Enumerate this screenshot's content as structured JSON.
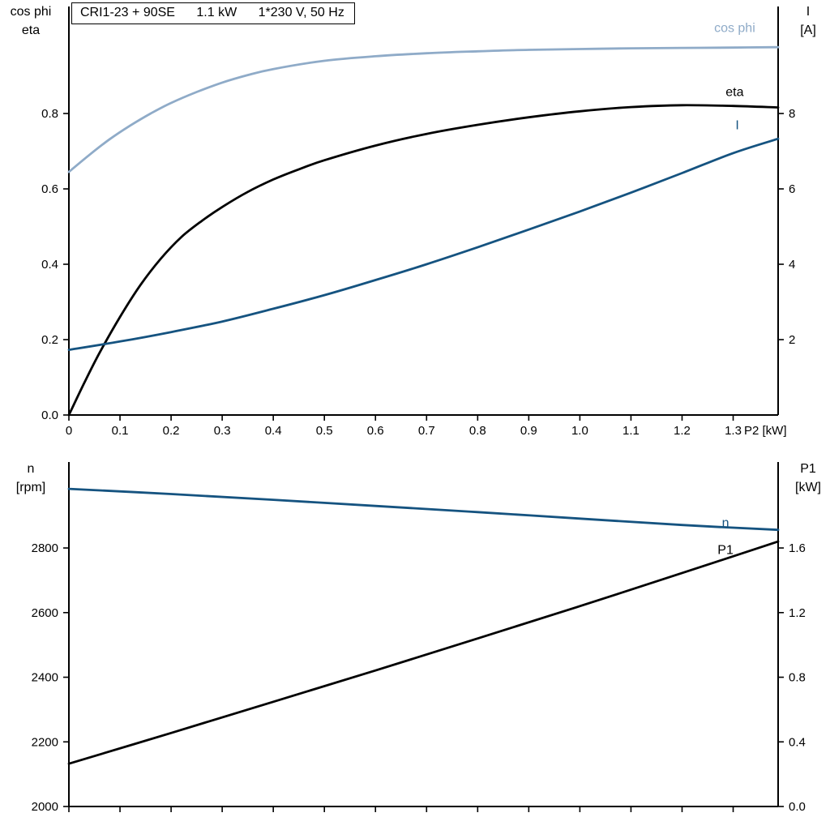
{
  "colors": {
    "axis": "#000000",
    "cos_phi_blue": "#8fabc8",
    "current_blue": "#155380",
    "black": "#000000",
    "background": "#ffffff"
  },
  "chart_data": [
    {
      "type": "line",
      "title_parts": [
        "CRI1-23 + 90SE",
        "1.1 kW",
        "1*230 V, 50 Hz"
      ],
      "x_label": "P2 [kW]",
      "xlim": [
        0,
        1.388
      ],
      "x_ticks": [
        0,
        0.1,
        0.2,
        0.3,
        0.4,
        0.5,
        0.6,
        0.7,
        0.8,
        0.9,
        1.0,
        1.1,
        1.2,
        1.3
      ],
      "x_tick_labels": [
        "0",
        "0.1",
        "0.2",
        "0.3",
        "0.4",
        "0.5",
        "0.6",
        "0.7",
        "0.8",
        "0.9",
        "1.0",
        "1.1",
        "1.2",
        "1.3"
      ],
      "left_axis": {
        "label_lines": [
          "cos phi",
          "eta"
        ],
        "lim": [
          0,
          1.084
        ],
        "ticks": [
          0,
          0.2,
          0.4,
          0.6,
          0.8
        ],
        "tick_labels": [
          "0.0",
          "0.2",
          "0.4",
          "0.6",
          "0.8"
        ]
      },
      "right_axis": {
        "label_lines": [
          "I",
          "[A]"
        ],
        "lim": [
          0,
          10.84
        ],
        "ticks": [
          2,
          4,
          6,
          8
        ],
        "tick_labels": [
          "2",
          "4",
          "6",
          "8"
        ]
      },
      "series": [
        {
          "name": "cos phi",
          "axis": "left",
          "color": "#8fabc8",
          "x": [
            0,
            0.04,
            0.08,
            0.12,
            0.16,
            0.2,
            0.25,
            0.3,
            0.35,
            0.4,
            0.5,
            0.6,
            0.7,
            0.8,
            0.9,
            1.0,
            1.1,
            1.2,
            1.3,
            1.388
          ],
          "y": [
            0.645,
            0.69,
            0.732,
            0.768,
            0.8,
            0.828,
            0.857,
            0.882,
            0.902,
            0.918,
            0.94,
            0.952,
            0.96,
            0.965,
            0.969,
            0.971,
            0.973,
            0.974,
            0.975,
            0.976
          ],
          "label": {
            "text": "cos phi",
            "x": 1.303,
            "y": 1.027,
            "anchor": "middle",
            "color": "#8fabc8"
          }
        },
        {
          "name": "eta",
          "axis": "left",
          "color": "#000000",
          "x": [
            0,
            0.03,
            0.06,
            0.1,
            0.14,
            0.18,
            0.22,
            0.26,
            0.3,
            0.35,
            0.4,
            0.45,
            0.5,
            0.6,
            0.7,
            0.8,
            0.9,
            1.0,
            1.1,
            1.2,
            1.3,
            1.388
          ],
          "y": [
            0,
            0.085,
            0.165,
            0.26,
            0.345,
            0.415,
            0.472,
            0.515,
            0.552,
            0.592,
            0.625,
            0.652,
            0.676,
            0.715,
            0.746,
            0.77,
            0.79,
            0.806,
            0.817,
            0.822,
            0.82,
            0.816
          ],
          "label": {
            "text": "eta",
            "x": 1.303,
            "y": 0.857,
            "anchor": "middle",
            "color": "#000000"
          }
        },
        {
          "name": "I",
          "axis": "right",
          "color": "#155380",
          "x": [
            0,
            0.1,
            0.2,
            0.3,
            0.4,
            0.5,
            0.6,
            0.7,
            0.8,
            0.9,
            1.0,
            1.1,
            1.2,
            1.3,
            1.388
          ],
          "y": [
            1.73,
            1.95,
            2.2,
            2.48,
            2.82,
            3.18,
            3.58,
            4.0,
            4.45,
            4.92,
            5.4,
            5.9,
            6.42,
            6.95,
            7.33
          ],
          "label": {
            "text": "I",
            "x": 1.308,
            "y": 7.69,
            "anchor": "middle",
            "color": "#155380"
          }
        }
      ]
    },
    {
      "type": "line",
      "x_label": "",
      "xlim": [
        0,
        1.388
      ],
      "x_ticks": [
        0,
        0.1,
        0.2,
        0.3,
        0.4,
        0.5,
        0.6,
        0.7,
        0.8,
        0.9,
        1.0,
        1.1,
        1.2,
        1.3
      ],
      "x_tick_labels": [],
      "left_axis": {
        "label_lines": [
          "n",
          "[rpm]"
        ],
        "lim": [
          2000,
          3066
        ],
        "ticks": [
          2000,
          2200,
          2400,
          2600,
          2800
        ],
        "tick_labels": [
          "2000",
          "2200",
          "2400",
          "2600",
          "2800"
        ]
      },
      "right_axis": {
        "label_lines": [
          "P1",
          "[kW]"
        ],
        "lim": [
          0,
          2.132
        ],
        "ticks": [
          0,
          0.4,
          0.8,
          1.2,
          1.6
        ],
        "tick_labels": [
          "0.0",
          "0.4",
          "0.8",
          "1.2",
          "1.6"
        ]
      },
      "series": [
        {
          "name": "n",
          "axis": "left",
          "color": "#155380",
          "x": [
            0,
            0.2,
            0.4,
            0.6,
            0.8,
            1.0,
            1.2,
            1.388
          ],
          "y": [
            2983,
            2967,
            2949,
            2930,
            2911,
            2891,
            2871,
            2856
          ],
          "label": {
            "text": "n",
            "x": 1.285,
            "y": 2878,
            "anchor": "middle",
            "color": "#155380"
          }
        },
        {
          "name": "P1",
          "axis": "left-as-right",
          "color": "#000000",
          "x": [
            0,
            0.2,
            0.4,
            0.6,
            0.8,
            1.0,
            1.2,
            1.388
          ],
          "y": [
            0.265,
            0.455,
            0.648,
            0.842,
            1.04,
            1.24,
            1.445,
            1.64
          ],
          "label": {
            "text": "P1",
            "x": 1.285,
            "y": 1.588,
            "anchor": "middle",
            "color": "#000000"
          }
        }
      ]
    }
  ]
}
